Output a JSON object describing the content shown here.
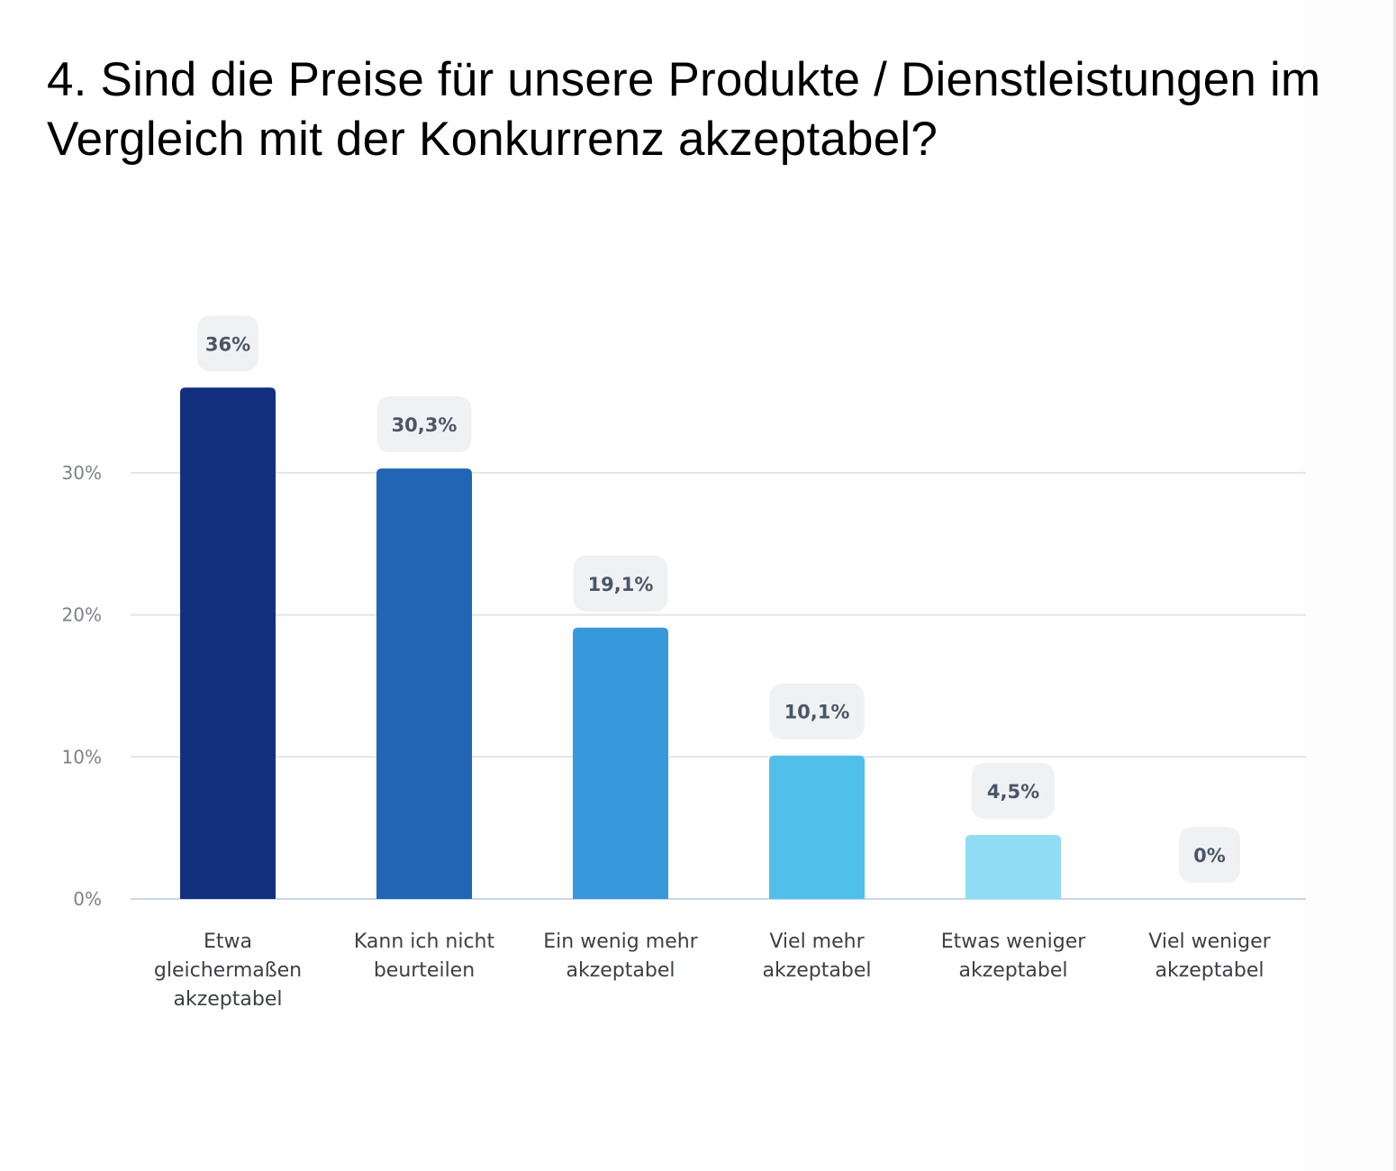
{
  "chart_data": {
    "type": "bar",
    "title": "4. Sind die Preise für unsere Produkte / Dienstleistungen im Vergleich mit der Konkurrenz akzeptabel?",
    "xlabel": "",
    "ylabel": "",
    "categories": [
      "Etwa gleichermaßen akzeptabel",
      "Kann ich nicht beurteilen",
      "Ein wenig mehr akzeptabel",
      "Viel mehr akzeptabel",
      "Etwas weniger akzeptabel",
      "Viel weniger akzeptabel"
    ],
    "category_lines": [
      [
        "Etwa",
        "gleichermaßen",
        "akzeptabel"
      ],
      [
        "Kann ich nicht",
        "beurteilen"
      ],
      [
        "Ein wenig mehr",
        "akzeptabel"
      ],
      [
        "Viel mehr",
        "akzeptabel"
      ],
      [
        "Etwas weniger",
        "akzeptabel"
      ],
      [
        "Viel weniger",
        "akzeptabel"
      ]
    ],
    "values": [
      36,
      30.3,
      19.1,
      10.1,
      4.5,
      0
    ],
    "value_labels": [
      "36%",
      "30,3%",
      "19,1%",
      "10,1%",
      "4,5%",
      "0%"
    ],
    "colors": [
      "#13307f",
      "#2265b4",
      "#3699dc",
      "#50c0eb",
      "#90dcf4",
      "#cfeefa"
    ],
    "yticks": [
      0,
      10,
      20,
      30
    ],
    "ytick_labels": [
      "0%",
      "10%",
      "20%",
      "30%"
    ],
    "ylim": [
      0,
      40
    ],
    "grid": true,
    "legend": "none"
  },
  "style": {
    "grid_color": "#e3e4e6",
    "baseline_color": "#cdd6e8",
    "label_box_color": "#f0f1f2"
  }
}
